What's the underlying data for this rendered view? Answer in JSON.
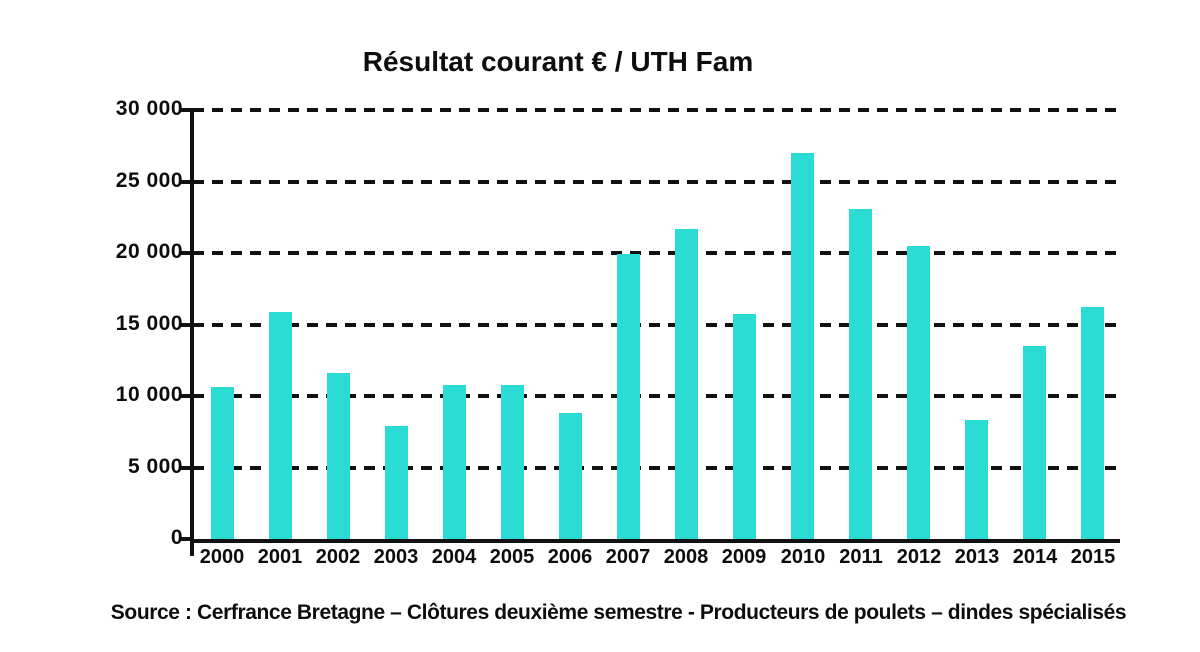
{
  "title": "Résultat courant € / UTH Fam",
  "source": "Source : Cerfrance Bretagne – Clôtures deuxième semestre - Producteurs de poulets – dindes spécialisés",
  "colors": {
    "bar": "#2BDCD4",
    "axis": "#111111",
    "text": "#0d0d0d",
    "background": "#ffffff"
  },
  "chart_data": {
    "type": "bar",
    "title": "Résultat courant € / UTH Fam",
    "categories": [
      "2000",
      "2001",
      "2002",
      "2003",
      "2004",
      "2005",
      "2006",
      "2007",
      "2008",
      "2009",
      "2010",
      "2011",
      "2012",
      "2013",
      "2014",
      "2015"
    ],
    "values": [
      10600,
      15900,
      11600,
      7900,
      10800,
      10800,
      8800,
      19900,
      21700,
      15700,
      27000,
      23100,
      20500,
      8300,
      13500,
      16200
    ],
    "xlabel": "",
    "ylabel": "",
    "ylim": [
      0,
      30000
    ],
    "ytick_step": 5000,
    "ytick_labels": [
      "0",
      "5 000",
      "10 000",
      "15 000",
      "20 000",
      "25 000",
      "30 000"
    ],
    "grid": "dashed-horizontal",
    "legend": "none"
  }
}
